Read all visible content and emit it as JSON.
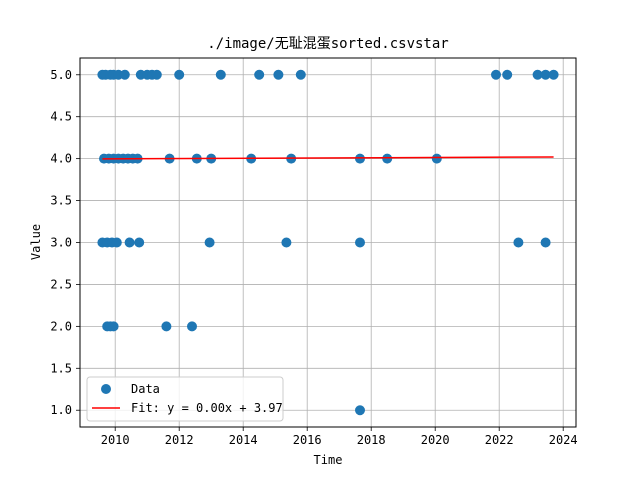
{
  "chart_data": {
    "type": "scatter",
    "title": "./image/无耻混蛋sorted.csvstar",
    "xlabel": "Time",
    "ylabel": "Value",
    "xlim": [
      2008.9,
      2024.4
    ],
    "ylim": [
      0.8,
      5.2
    ],
    "xticks": [
      2010,
      2012,
      2014,
      2016,
      2018,
      2020,
      2022,
      2024
    ],
    "yticks": [
      1.0,
      1.5,
      2.0,
      2.5,
      3.0,
      3.5,
      4.0,
      4.5,
      5.0
    ],
    "xtick_labels": [
      "2010",
      "2012",
      "2014",
      "2016",
      "2018",
      "2020",
      "2022",
      "2024"
    ],
    "ytick_labels": [
      "1.0",
      "1.5",
      "2.0",
      "2.5",
      "3.0",
      "3.5",
      "4.0",
      "4.5",
      "5.0"
    ],
    "grid": true,
    "legend_position": "lower-left",
    "series": [
      {
        "name": "Data",
        "kind": "scatter",
        "color": "#1f77b4",
        "points": [
          [
            2009.6,
            5
          ],
          [
            2009.7,
            5
          ],
          [
            2009.85,
            5
          ],
          [
            2009.95,
            5
          ],
          [
            2010.1,
            5
          ],
          [
            2010.3,
            5
          ],
          [
            2010.8,
            5
          ],
          [
            2011.0,
            5
          ],
          [
            2011.15,
            5
          ],
          [
            2011.3,
            5
          ],
          [
            2012.0,
            5
          ],
          [
            2013.3,
            5
          ],
          [
            2014.5,
            5
          ],
          [
            2015.1,
            5
          ],
          [
            2015.8,
            5
          ],
          [
            2021.9,
            5
          ],
          [
            2022.25,
            5
          ],
          [
            2023.2,
            5
          ],
          [
            2023.45,
            5
          ],
          [
            2023.7,
            5
          ],
          [
            2009.65,
            4
          ],
          [
            2009.8,
            4
          ],
          [
            2009.95,
            4
          ],
          [
            2010.1,
            4
          ],
          [
            2010.25,
            4
          ],
          [
            2010.4,
            4
          ],
          [
            2010.55,
            4
          ],
          [
            2010.7,
            4
          ],
          [
            2011.7,
            4
          ],
          [
            2012.55,
            4
          ],
          [
            2013.0,
            4
          ],
          [
            2014.25,
            4
          ],
          [
            2015.5,
            4
          ],
          [
            2017.65,
            4
          ],
          [
            2018.5,
            4
          ],
          [
            2020.05,
            4
          ],
          [
            2009.6,
            3
          ],
          [
            2009.75,
            3
          ],
          [
            2009.9,
            3
          ],
          [
            2010.05,
            3
          ],
          [
            2010.45,
            3
          ],
          [
            2010.75,
            3
          ],
          [
            2012.95,
            3
          ],
          [
            2015.35,
            3
          ],
          [
            2017.65,
            3
          ],
          [
            2022.6,
            3
          ],
          [
            2023.45,
            3
          ],
          [
            2009.75,
            2
          ],
          [
            2009.85,
            2
          ],
          [
            2009.95,
            2
          ],
          [
            2011.6,
            2
          ],
          [
            2012.4,
            2
          ],
          [
            2017.65,
            1
          ]
        ]
      },
      {
        "name": "Fit: y = 0.00x + 3.97",
        "kind": "line",
        "color": "#ff0000",
        "points": [
          [
            2009.6,
            3.997
          ],
          [
            2023.7,
            4.02
          ]
        ]
      }
    ]
  }
}
